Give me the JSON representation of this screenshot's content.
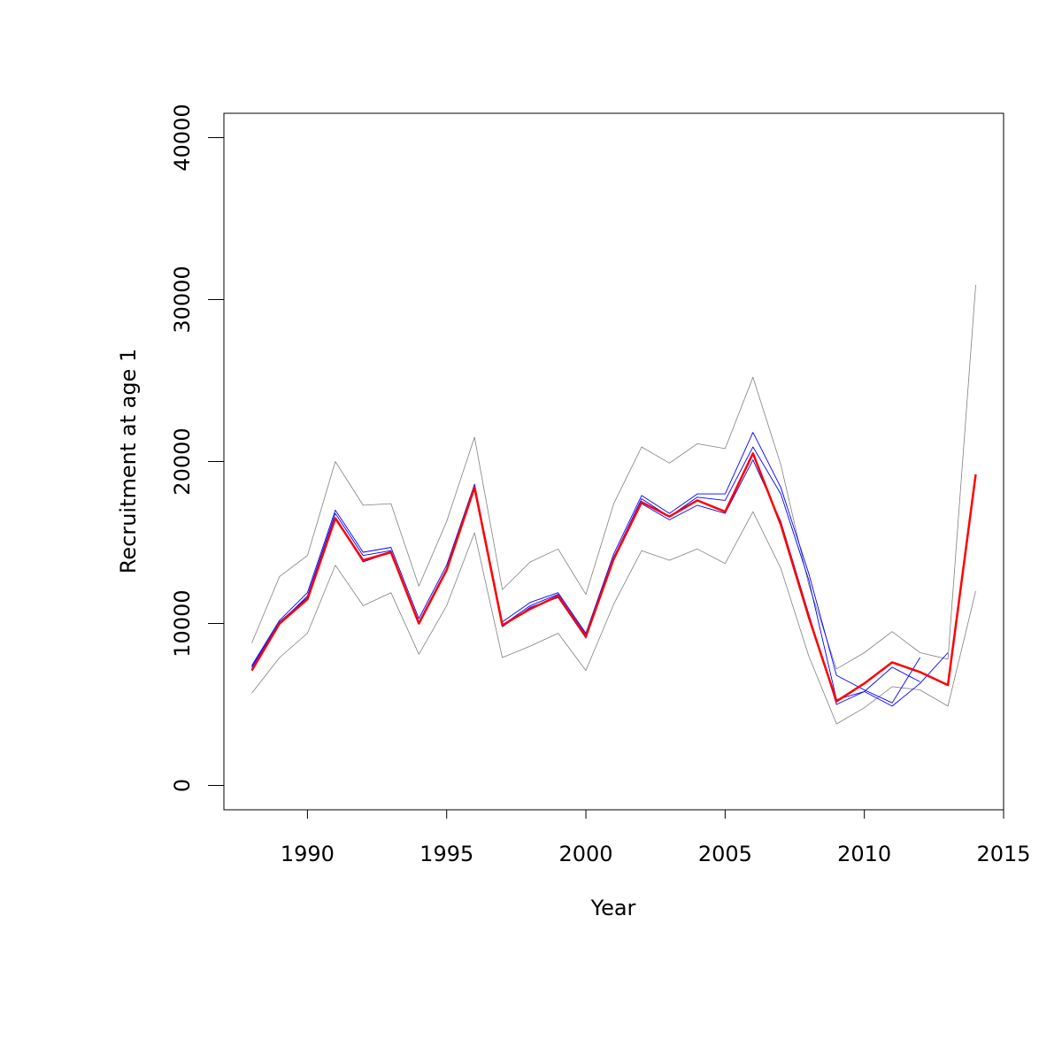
{
  "chart_data": {
    "type": "line",
    "xlabel": "Year",
    "ylabel": "Recruitment at age 1",
    "xlim": [
      1987,
      2015
    ],
    "ylim": [
      -1500,
      41500
    ],
    "x_ticks": [
      1990,
      1995,
      2000,
      2005,
      2010,
      2015
    ],
    "y_ticks": [
      0,
      10000,
      20000,
      30000,
      40000
    ],
    "grid": false,
    "legend": "none",
    "series": [
      {
        "color": "#808080",
        "x": [
          1988,
          1989,
          1990,
          1991,
          1992,
          1993,
          1994,
          1995,
          1996,
          1997,
          1998,
          1999,
          2000,
          2001,
          2002,
          2003,
          2004,
          2005,
          2006,
          2007,
          2008,
          2009,
          2010,
          2011,
          2012,
          2013,
          2014
        ],
        "y": [
          8800,
          12900,
          14200,
          20000,
          17300,
          17400,
          12300,
          16300,
          21500,
          12100,
          13800,
          14600,
          11800,
          17400,
          20900,
          19900,
          21100,
          20800,
          25200,
          19800,
          12400,
          7200,
          8200,
          9500,
          8200,
          7800,
          30900
        ]
      },
      {
        "color": "#808080",
        "x": [
          1988,
          1989,
          1990,
          1991,
          1992,
          1993,
          1994,
          1995,
          1996,
          1997,
          1998,
          1999,
          2000,
          2001,
          2002,
          2003,
          2004,
          2005,
          2006,
          2007,
          2008,
          2009,
          2010,
          2011,
          2012,
          2013,
          2014
        ],
        "y": [
          5700,
          7900,
          9400,
          13600,
          11100,
          11900,
          8100,
          11100,
          15600,
          7900,
          8600,
          9400,
          7100,
          11200,
          14500,
          13900,
          14600,
          13700,
          16900,
          13400,
          8000,
          3800,
          4800,
          6100,
          5900,
          4900,
          12000
        ]
      },
      {
        "color": "#0000ff",
        "x": [
          1988,
          1989,
          1990,
          1991,
          1992,
          1993,
          1994,
          1995,
          1996,
          1997,
          1998,
          1999,
          2000,
          2001,
          2002,
          2003,
          2004,
          2005,
          2006,
          2007,
          2008,
          2009,
          2010,
          2011,
          2012
        ],
        "y": [
          7400,
          10200,
          11900,
          17000,
          14400,
          14700,
          10300,
          13600,
          18600,
          10100,
          11300,
          11900,
          9400,
          14300,
          17900,
          16800,
          18000,
          18000,
          21800,
          18400,
          13100,
          6800,
          5900,
          5100,
          7900
        ]
      },
      {
        "color": "#0000ff",
        "x": [
          1988,
          1989,
          1990,
          1991,
          1992,
          1993,
          1994,
          1995,
          1996,
          1997,
          1998,
          1999,
          2000,
          2001,
          2002,
          2003,
          2004,
          2005,
          2006,
          2007,
          2008,
          2009,
          2010,
          2011,
          2012,
          2013
        ],
        "y": [
          7200,
          10000,
          11700,
          16800,
          14200,
          14500,
          10100,
          13400,
          18400,
          9900,
          11100,
          11800,
          9300,
          14100,
          17700,
          16600,
          17800,
          17600,
          20900,
          18000,
          12700,
          5300,
          5800,
          4900,
          6300,
          8200
        ]
      },
      {
        "color": "#0000ff",
        "x": [
          1988,
          1989,
          1990,
          1991,
          1992,
          1993,
          1994,
          1995,
          1996,
          1997,
          1998,
          1999,
          2000,
          2001,
          2002,
          2003,
          2004,
          2005,
          2006,
          2007,
          2008,
          2009,
          2010,
          2011,
          2012
        ],
        "y": [
          7300,
          10100,
          11600,
          16500,
          13800,
          14400,
          10000,
          13300,
          18300,
          9800,
          11000,
          11600,
          9100,
          13900,
          17400,
          16400,
          17300,
          16800,
          20100,
          16300,
          10600,
          5000,
          5800,
          7300,
          6400
        ]
      },
      {
        "color": "#ff0000",
        "x": [
          1988,
          1989,
          1990,
          1991,
          1992,
          1993,
          1994,
          1995,
          1996,
          1997,
          1998,
          1999,
          2000,
          2001,
          2002,
          2003,
          2004,
          2005,
          2006,
          2007,
          2008,
          2009,
          2010,
          2011,
          2012,
          2013,
          2014
        ],
        "y": [
          7100,
          10000,
          11500,
          16500,
          13900,
          14400,
          10000,
          13300,
          18400,
          9900,
          10900,
          11700,
          9200,
          14000,
          17500,
          16600,
          17600,
          16900,
          20500,
          16100,
          10400,
          5200,
          6300,
          7600,
          7000,
          6200,
          19200
        ]
      }
    ]
  }
}
